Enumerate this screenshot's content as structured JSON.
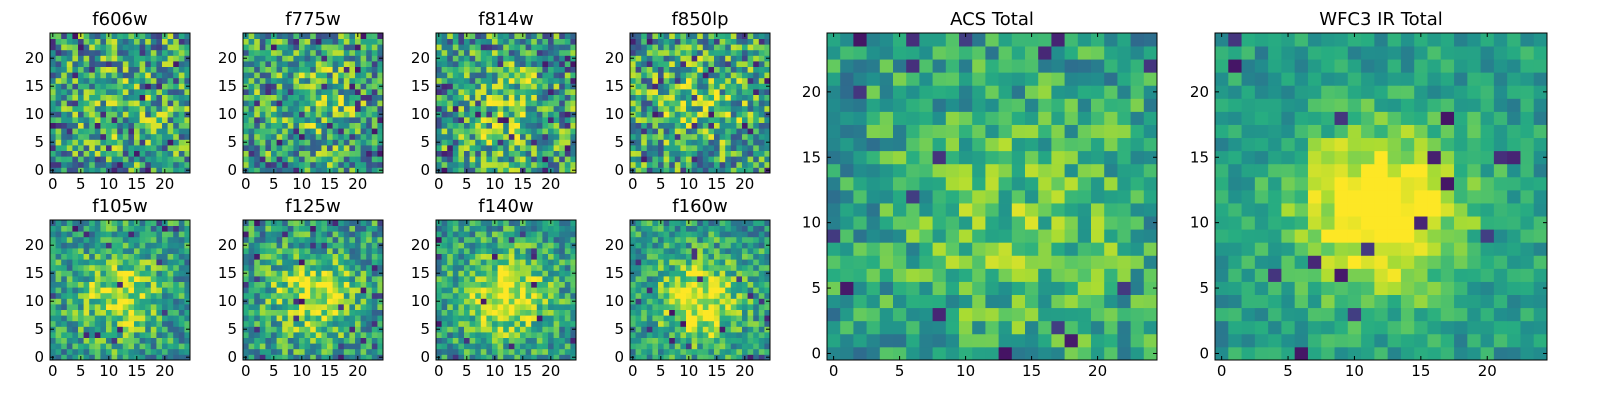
{
  "figure": {
    "description_type": "grid of heatmap images",
    "colormap": "viridis"
  },
  "chart_data": [
    {
      "type": "heatmap",
      "title": "f606w",
      "xlim": [
        -0.5,
        24.5
      ],
      "ylim": [
        -0.5,
        24.5
      ],
      "xticks": [
        0,
        5,
        10,
        15,
        20
      ],
      "yticks": [
        0,
        5,
        10,
        15,
        20
      ],
      "grid": 25,
      "noise": 0.75,
      "blob_center": [
        13,
        12
      ],
      "blob_sigma": 6,
      "blob_amp": 0.1,
      "dark_prob": 0.05,
      "seed": 11,
      "colormap": "viridis"
    },
    {
      "type": "heatmap",
      "title": "f775w",
      "xlim": [
        -0.5,
        24.5
      ],
      "ylim": [
        -0.5,
        24.5
      ],
      "xticks": [
        0,
        5,
        10,
        15,
        20
      ],
      "yticks": [
        0,
        5,
        10,
        15,
        20
      ],
      "grid": 25,
      "noise": 0.7,
      "blob_center": [
        12,
        12
      ],
      "blob_sigma": 6,
      "blob_amp": 0.18,
      "dark_prob": 0.06,
      "seed": 23,
      "colormap": "viridis"
    },
    {
      "type": "heatmap",
      "title": "f814w",
      "xlim": [
        -0.5,
        24.5
      ],
      "ylim": [
        -0.5,
        24.5
      ],
      "xticks": [
        0,
        5,
        10,
        15,
        20
      ],
      "yticks": [
        0,
        5,
        10,
        15,
        20
      ],
      "grid": 25,
      "noise": 0.72,
      "blob_center": [
        12,
        11
      ],
      "blob_sigma": 6,
      "blob_amp": 0.18,
      "dark_prob": 0.06,
      "seed": 37,
      "colormap": "viridis"
    },
    {
      "type": "heatmap",
      "title": "f850lp",
      "xlim": [
        -0.5,
        24.5
      ],
      "ylim": [
        -0.5,
        24.5
      ],
      "xticks": [
        0,
        5,
        10,
        15,
        20
      ],
      "yticks": [
        0,
        5,
        10,
        15,
        20
      ],
      "grid": 25,
      "noise": 0.72,
      "blob_center": [
        12,
        12
      ],
      "blob_sigma": 6,
      "blob_amp": 0.18,
      "dark_prob": 0.07,
      "seed": 41,
      "colormap": "viridis"
    },
    {
      "type": "heatmap",
      "title": "f105w",
      "xlim": [
        -0.5,
        24.5
      ],
      "ylim": [
        -0.5,
        24.5
      ],
      "xticks": [
        0,
        5,
        10,
        15,
        20
      ],
      "yticks": [
        0,
        5,
        10,
        15,
        20
      ],
      "grid": 25,
      "noise": 0.55,
      "blob_center": [
        12,
        11
      ],
      "blob_sigma": 5,
      "blob_amp": 0.35,
      "dark_prob": 0.03,
      "seed": 53,
      "colormap": "viridis"
    },
    {
      "type": "heatmap",
      "title": "f125w",
      "xlim": [
        -0.5,
        24.5
      ],
      "ylim": [
        -0.5,
        24.5
      ],
      "xticks": [
        0,
        5,
        10,
        15,
        20
      ],
      "yticks": [
        0,
        5,
        10,
        15,
        20
      ],
      "grid": 25,
      "noise": 0.55,
      "blob_center": [
        12,
        11
      ],
      "blob_sigma": 5,
      "blob_amp": 0.4,
      "dark_prob": 0.04,
      "seed": 67,
      "colormap": "viridis"
    },
    {
      "type": "heatmap",
      "title": "f140w",
      "xlim": [
        -0.5,
        24.5
      ],
      "ylim": [
        -0.5,
        24.5
      ],
      "xticks": [
        0,
        5,
        10,
        15,
        20
      ],
      "yticks": [
        0,
        5,
        10,
        15,
        20
      ],
      "grid": 25,
      "noise": 0.5,
      "blob_center": [
        12,
        11
      ],
      "blob_sigma": 5,
      "blob_amp": 0.45,
      "dark_prob": 0.03,
      "seed": 79,
      "colormap": "viridis"
    },
    {
      "type": "heatmap",
      "title": "f160w",
      "xlim": [
        -0.5,
        24.5
      ],
      "ylim": [
        -0.5,
        24.5
      ],
      "xticks": [
        0,
        5,
        10,
        15,
        20
      ],
      "yticks": [
        0,
        5,
        10,
        15,
        20
      ],
      "grid": 25,
      "noise": 0.5,
      "blob_center": [
        12,
        10
      ],
      "blob_sigma": 5,
      "blob_amp": 0.45,
      "dark_prob": 0.03,
      "seed": 83,
      "colormap": "viridis"
    },
    {
      "type": "heatmap",
      "title": "ACS Total",
      "xlim": [
        -0.5,
        24.5
      ],
      "ylim": [
        -0.5,
        24.5
      ],
      "xticks": [
        0,
        5,
        10,
        15,
        20
      ],
      "yticks": [
        0,
        5,
        10,
        15,
        20
      ],
      "grid": 25,
      "noise": 0.45,
      "blob_center": [
        14,
        10
      ],
      "blob_sigma": 7,
      "blob_amp": 0.2,
      "dark_prob": 0.035,
      "seed": 97,
      "colormap": "viridis"
    },
    {
      "type": "heatmap",
      "title": "WFC3 IR Total",
      "xlim": [
        -0.5,
        24.5
      ],
      "ylim": [
        -0.5,
        24.5
      ],
      "xticks": [
        0,
        5,
        10,
        15,
        20
      ],
      "yticks": [
        0,
        5,
        10,
        15,
        20
      ],
      "grid": 25,
      "noise": 0.3,
      "blob_center": [
        12,
        11
      ],
      "blob_sigma": 4.5,
      "blob_amp": 0.6,
      "dark_prob": 0.02,
      "seed": 101,
      "colormap": "viridis"
    }
  ]
}
